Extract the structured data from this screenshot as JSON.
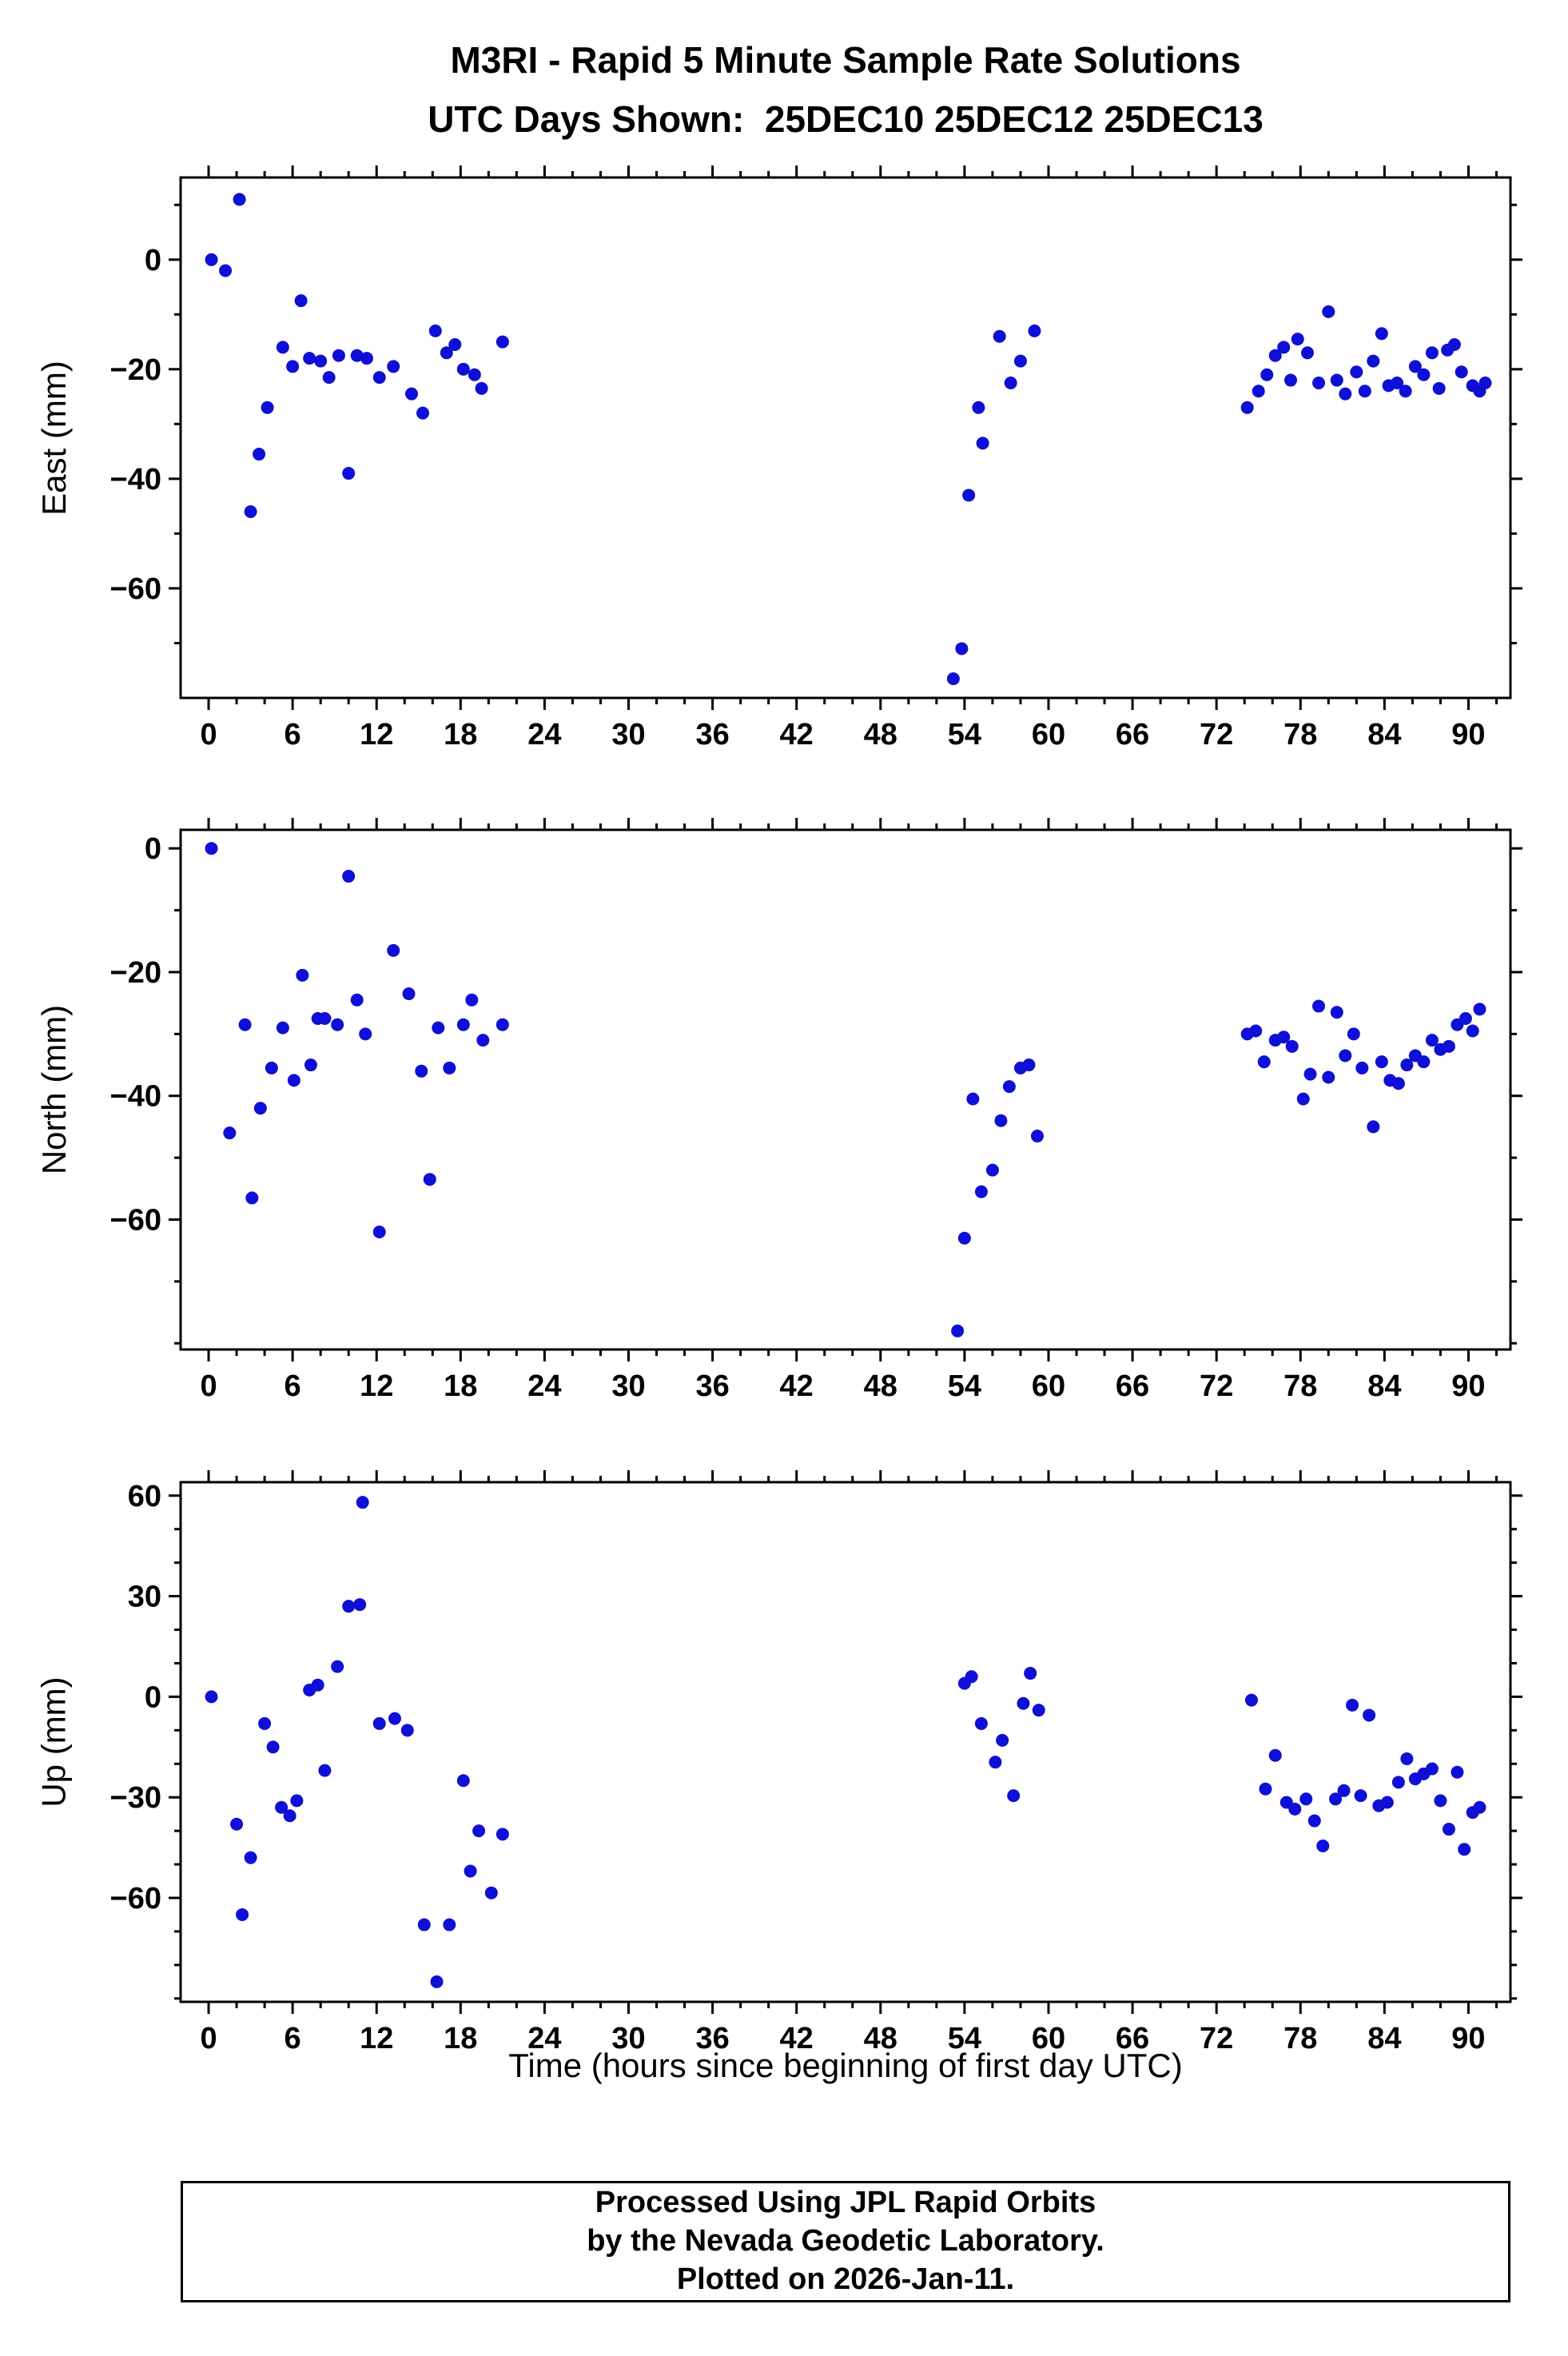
{
  "title": "M3RI - Rapid 5 Minute Sample Rate Solutions",
  "subtitle": "UTC Days Shown:  25DEC10 25DEC12 25DEC13",
  "xlabel": "Time (hours since beginning of first day UTC)",
  "footer": {
    "lines": [
      "Processed Using JPL Rapid Orbits",
      "by the Nevada Geodetic Laboratory.",
      "Plotted on 2026-Jan-11."
    ]
  },
  "style": {
    "dot_color": "#0f0fd6",
    "frame_color": "#000000",
    "tick_label_size": 38,
    "dot_radius": 8
  },
  "chart_data": [
    {
      "type": "scatter",
      "name": "east",
      "ylabel": "East (mm)",
      "xlabel": "",
      "xlim": [
        -2,
        93
      ],
      "ylim": [
        -80,
        15
      ],
      "xtick": 6,
      "xminor": 2,
      "yticks": [
        0,
        -20,
        -40,
        -60
      ],
      "yminor": 10,
      "grid": false,
      "points": [
        [
          0.2,
          0
        ],
        [
          1.2,
          -2
        ],
        [
          2.2,
          11
        ],
        [
          3.0,
          -46
        ],
        [
          3.6,
          -35.5
        ],
        [
          4.2,
          -27
        ],
        [
          5.3,
          -16
        ],
        [
          6.0,
          -19.5
        ],
        [
          6.6,
          -7.5
        ],
        [
          7.2,
          -18
        ],
        [
          8.0,
          -18.5
        ],
        [
          8.6,
          -21.5
        ],
        [
          9.3,
          -17.5
        ],
        [
          10.0,
          -39
        ],
        [
          10.6,
          -17.5
        ],
        [
          11.3,
          -18
        ],
        [
          12.2,
          -21.5
        ],
        [
          13.2,
          -19.5
        ],
        [
          14.5,
          -24.5
        ],
        [
          15.3,
          -28
        ],
        [
          16.2,
          -13
        ],
        [
          17.0,
          -17
        ],
        [
          17.6,
          -15.5
        ],
        [
          18.2,
          -20
        ],
        [
          19.0,
          -21
        ],
        [
          19.5,
          -23.5
        ],
        [
          21.0,
          -15
        ],
        [
          53.2,
          -76.5
        ],
        [
          53.8,
          -71
        ],
        [
          54.3,
          -43
        ],
        [
          55.0,
          -27
        ],
        [
          55.3,
          -33.5
        ],
        [
          56.5,
          -14
        ],
        [
          57.3,
          -22.5
        ],
        [
          58.0,
          -18.5
        ],
        [
          59.0,
          -13
        ],
        [
          74.2,
          -27
        ],
        [
          75.0,
          -24
        ],
        [
          75.6,
          -21
        ],
        [
          76.2,
          -17.5
        ],
        [
          76.8,
          -16
        ],
        [
          77.3,
          -22
        ],
        [
          77.8,
          -14.5
        ],
        [
          78.5,
          -17
        ],
        [
          79.3,
          -22.5
        ],
        [
          80.0,
          -9.5
        ],
        [
          80.6,
          -22
        ],
        [
          81.2,
          -24.5
        ],
        [
          82.0,
          -20.5
        ],
        [
          82.6,
          -24
        ],
        [
          83.2,
          -18.5
        ],
        [
          83.8,
          -13.5
        ],
        [
          84.3,
          -23
        ],
        [
          84.9,
          -22.5
        ],
        [
          85.5,
          -24
        ],
        [
          86.2,
          -19.5
        ],
        [
          86.8,
          -21
        ],
        [
          87.4,
          -17
        ],
        [
          87.9,
          -23.5
        ],
        [
          88.5,
          -16.5
        ],
        [
          89.0,
          -15.5
        ],
        [
          89.5,
          -20.5
        ],
        [
          90.3,
          -23
        ],
        [
          90.8,
          -24
        ],
        [
          91.2,
          -22.5
        ]
      ]
    },
    {
      "type": "scatter",
      "name": "north",
      "ylabel": "North (mm)",
      "xlabel": "",
      "xlim": [
        -2,
        93
      ],
      "ylim": [
        -81,
        3
      ],
      "xtick": 6,
      "xminor": 2,
      "yticks": [
        0,
        -20,
        -40,
        -60
      ],
      "yminor": 10,
      "grid": false,
      "points": [
        [
          0.2,
          0
        ],
        [
          1.5,
          -46
        ],
        [
          2.6,
          -28.5
        ],
        [
          3.1,
          -56.5
        ],
        [
          3.7,
          -42
        ],
        [
          4.5,
          -35.5
        ],
        [
          5.3,
          -29
        ],
        [
          6.1,
          -37.5
        ],
        [
          6.7,
          -20.5
        ],
        [
          7.3,
          -35
        ],
        [
          7.8,
          -27.5
        ],
        [
          8.3,
          -27.5
        ],
        [
          9.2,
          -28.5
        ],
        [
          10.0,
          -4.5
        ],
        [
          10.6,
          -24.5
        ],
        [
          11.2,
          -30
        ],
        [
          12.2,
          -62
        ],
        [
          13.2,
          -16.5
        ],
        [
          14.3,
          -23.5
        ],
        [
          15.2,
          -36
        ],
        [
          15.8,
          -53.5
        ],
        [
          16.4,
          -29
        ],
        [
          17.2,
          -35.5
        ],
        [
          18.2,
          -28.5
        ],
        [
          18.8,
          -24.5
        ],
        [
          19.6,
          -31
        ],
        [
          21.0,
          -28.5
        ],
        [
          53.5,
          -78
        ],
        [
          54.0,
          -63
        ],
        [
          54.6,
          -40.5
        ],
        [
          55.2,
          -55.5
        ],
        [
          56.0,
          -52
        ],
        [
          56.6,
          -44
        ],
        [
          57.2,
          -38.5
        ],
        [
          58.0,
          -35.5
        ],
        [
          58.6,
          -35
        ],
        [
          59.2,
          -46.5
        ],
        [
          74.2,
          -30
        ],
        [
          74.8,
          -29.5
        ],
        [
          75.4,
          -34.5
        ],
        [
          76.2,
          -31
        ],
        [
          76.8,
          -30.5
        ],
        [
          77.4,
          -32
        ],
        [
          78.2,
          -40.5
        ],
        [
          78.7,
          -36.5
        ],
        [
          79.3,
          -25.5
        ],
        [
          80.0,
          -37
        ],
        [
          80.6,
          -26.5
        ],
        [
          81.2,
          -33.5
        ],
        [
          81.8,
          -30
        ],
        [
          82.4,
          -35.5
        ],
        [
          83.2,
          -45
        ],
        [
          83.8,
          -34.5
        ],
        [
          84.4,
          -37.5
        ],
        [
          85.0,
          -38
        ],
        [
          85.6,
          -35
        ],
        [
          86.2,
          -33.5
        ],
        [
          86.8,
          -34.5
        ],
        [
          87.4,
          -31
        ],
        [
          88.0,
          -32.5
        ],
        [
          88.6,
          -32
        ],
        [
          89.2,
          -28.5
        ],
        [
          89.8,
          -27.5
        ],
        [
          90.3,
          -29.5
        ],
        [
          90.8,
          -26
        ]
      ]
    },
    {
      "type": "scatter",
      "name": "up",
      "ylabel": "Up (mm)",
      "xlabel": "Time (hours since beginning of first day UTC)",
      "xlim": [
        -2,
        93
      ],
      "ylim": [
        -91,
        64
      ],
      "xtick": 6,
      "xminor": 2,
      "yticks": [
        60,
        30,
        0,
        -30,
        -60
      ],
      "yminor": 10,
      "grid": false,
      "points": [
        [
          0.2,
          0
        ],
        [
          2.0,
          -38
        ],
        [
          2.4,
          -65
        ],
        [
          3.0,
          -48
        ],
        [
          4.0,
          -8
        ],
        [
          4.6,
          -15
        ],
        [
          5.2,
          -33
        ],
        [
          5.8,
          -35.5
        ],
        [
          6.3,
          -31
        ],
        [
          7.2,
          2
        ],
        [
          7.8,
          3.5
        ],
        [
          8.3,
          -22
        ],
        [
          9.2,
          9
        ],
        [
          10.0,
          27
        ],
        [
          10.8,
          27.5
        ],
        [
          11.0,
          58
        ],
        [
          12.2,
          -8
        ],
        [
          13.3,
          -6.5
        ],
        [
          14.2,
          -10
        ],
        [
          15.4,
          -68
        ],
        [
          16.3,
          -85
        ],
        [
          17.2,
          -68
        ],
        [
          18.2,
          -25
        ],
        [
          18.7,
          -52
        ],
        [
          19.3,
          -40
        ],
        [
          20.2,
          -58.5
        ],
        [
          21.0,
          -41
        ],
        [
          54.0,
          4
        ],
        [
          54.5,
          6
        ],
        [
          55.2,
          -8
        ],
        [
          56.2,
          -19.5
        ],
        [
          56.7,
          -13
        ],
        [
          57.5,
          -29.5
        ],
        [
          58.2,
          -2
        ],
        [
          58.7,
          7
        ],
        [
          59.3,
          -4
        ],
        [
          74.5,
          -1
        ],
        [
          75.5,
          -27.5
        ],
        [
          76.2,
          -17.5
        ],
        [
          77.0,
          -31.5
        ],
        [
          77.6,
          -33.5
        ],
        [
          78.4,
          -30.5
        ],
        [
          79.0,
          -37
        ],
        [
          79.6,
          -44.5
        ],
        [
          80.5,
          -30.5
        ],
        [
          81.1,
          -28
        ],
        [
          81.7,
          -2.5
        ],
        [
          82.3,
          -29.5
        ],
        [
          82.9,
          -5.5
        ],
        [
          83.6,
          -32.5
        ],
        [
          84.2,
          -31.5
        ],
        [
          85.0,
          -25.5
        ],
        [
          85.6,
          -18.5
        ],
        [
          86.2,
          -24.5
        ],
        [
          86.8,
          -23
        ],
        [
          87.4,
          -21.5
        ],
        [
          88.0,
          -31
        ],
        [
          88.6,
          -39.5
        ],
        [
          89.2,
          -22.5
        ],
        [
          89.7,
          -45.5
        ],
        [
          90.3,
          -34.5
        ],
        [
          90.8,
          -33
        ]
      ]
    }
  ]
}
